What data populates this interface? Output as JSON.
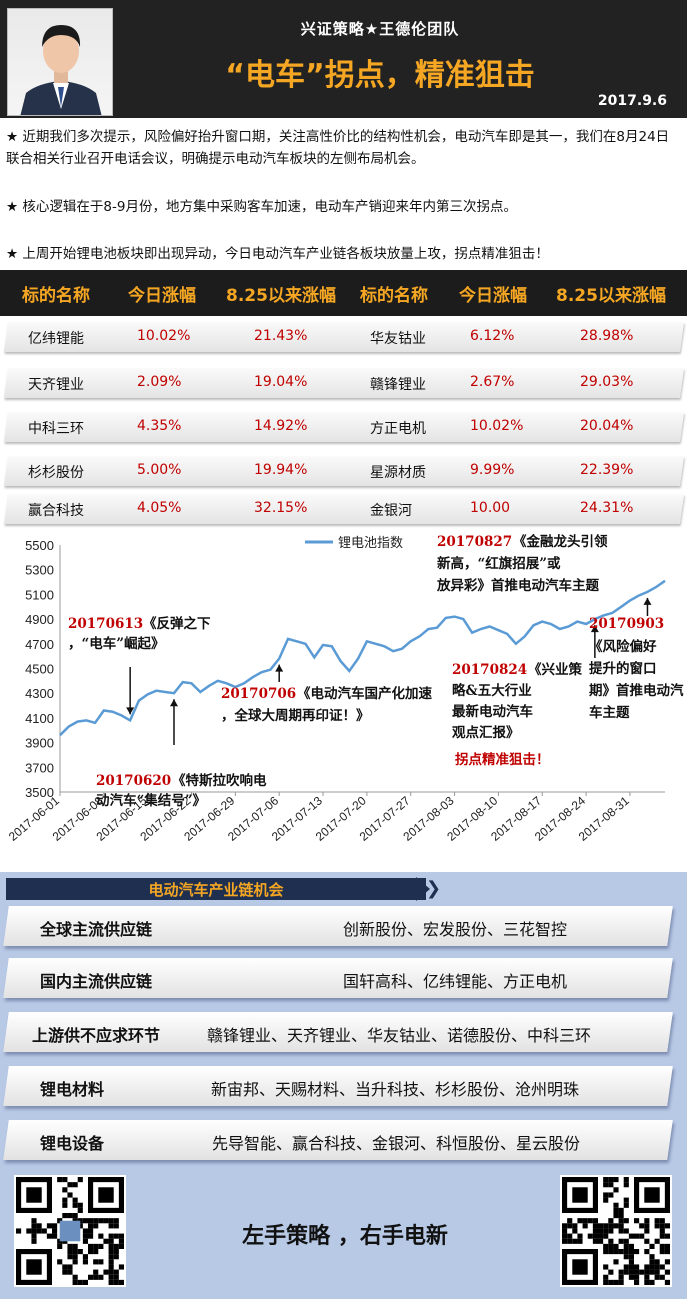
{
  "header": {
    "team": "兴证策略★王德伦团队",
    "title": "“电车”拐点，精准狙击",
    "date": "2017.9.6"
  },
  "intro": [
    "★  近期我们多次提示，风险偏好抬升窗口期，关注高性价比的结构性机会，电动汽车即是其一，我们在8月24日联合相关行业召开电话会议，明确提示电动汽车板块的左侧布局机会。",
    "★  核心逻辑在于8-9月份，地方集中采购客车加速，电动车产销迎来年内第三次拐点。",
    "★  上周开始锂电池板块即出现异动，今日电动汽车产业链各板块放量上攻，拐点精准狙击！"
  ],
  "table": {
    "headers": [
      "标的名称",
      "今日涨幅",
      "8.25以来涨幅",
      "标的名称",
      "今日涨幅",
      "8.25以来涨幅"
    ],
    "rows": [
      [
        "亿纬锂能",
        "10.02%",
        "21.43%",
        "华友钴业",
        "6.12%",
        "28.98%"
      ],
      [
        "天齐锂业",
        "2.09%",
        "19.04%",
        "赣锋锂业",
        "2.67%",
        "29.03%"
      ],
      [
        "中科三环",
        "4.35%",
        "14.92%",
        "方正电机",
        "10.02%",
        "20.04%"
      ],
      [
        "杉杉股份",
        "5.00%",
        "19.94%",
        "星源材质",
        "9.99%",
        "22.39%"
      ],
      [
        "赢合科技",
        "4.05%",
        "32.15%",
        "金银河",
        "10.00",
        "24.31%"
      ]
    ]
  },
  "chart_data": {
    "type": "line",
    "series": [
      {
        "name": "锂电池指数",
        "x": [
          "2017-06-01",
          "2017-06-02",
          "2017-06-05",
          "2017-06-06",
          "2017-06-07",
          "2017-06-08",
          "2017-06-09",
          "2017-06-12",
          "2017-06-13",
          "2017-06-14",
          "2017-06-15",
          "2017-06-16",
          "2017-06-19",
          "2017-06-20",
          "2017-06-21",
          "2017-06-22",
          "2017-06-23",
          "2017-06-26",
          "2017-06-27",
          "2017-06-28",
          "2017-06-29",
          "2017-06-30",
          "2017-07-03",
          "2017-07-04",
          "2017-07-05",
          "2017-07-06",
          "2017-07-07",
          "2017-07-10",
          "2017-07-11",
          "2017-07-12",
          "2017-07-13",
          "2017-07-14",
          "2017-07-17",
          "2017-07-18",
          "2017-07-19",
          "2017-07-20",
          "2017-07-21",
          "2017-07-24",
          "2017-07-25",
          "2017-07-26",
          "2017-07-27",
          "2017-07-28",
          "2017-07-31",
          "2017-08-01",
          "2017-08-02",
          "2017-08-03",
          "2017-08-04",
          "2017-08-07",
          "2017-08-08",
          "2017-08-09",
          "2017-08-10",
          "2017-08-11",
          "2017-08-14",
          "2017-08-15",
          "2017-08-16",
          "2017-08-17",
          "2017-08-18",
          "2017-08-21",
          "2017-08-22",
          "2017-08-23",
          "2017-08-24",
          "2017-08-25",
          "2017-08-28",
          "2017-08-29",
          "2017-08-30",
          "2017-08-31",
          "2017-09-01",
          "2017-09-04",
          "2017-09-05",
          "2017-09-06"
        ],
        "values": [
          3960,
          4030,
          4070,
          4080,
          4060,
          4160,
          4150,
          4120,
          4080,
          4240,
          4290,
          4320,
          4310,
          4300,
          4390,
          4380,
          4310,
          4360,
          4400,
          4380,
          4350,
          4380,
          4430,
          4470,
          4490,
          4580,
          4740,
          4720,
          4700,
          4590,
          4690,
          4680,
          4560,
          4480,
          4580,
          4720,
          4700,
          4680,
          4640,
          4660,
          4720,
          4760,
          4820,
          4830,
          4910,
          4920,
          4900,
          4790,
          4820,
          4840,
          4810,
          4780,
          4700,
          4760,
          4850,
          4880,
          4860,
          4820,
          4840,
          4880,
          4860,
          4900,
          4930,
          4950,
          5000,
          5050,
          5090,
          5120,
          5160,
          5210
        ]
      }
    ],
    "ylim": [
      3500,
      5500
    ],
    "yticks": [
      "5500",
      "5300",
      "5100",
      "4900",
      "4700",
      "4500",
      "4300",
      "4100",
      "3900",
      "3700",
      "3500"
    ],
    "xticks": [
      "2017-06-01",
      "2017-06-08",
      "2017-06-15",
      "2017-06-22",
      "2017-06-29",
      "2017-07-06",
      "2017-07-13",
      "2017-07-20",
      "2017-07-27",
      "2017-08-03",
      "2017-08-10",
      "2017-08-17",
      "2017-08-24",
      "2017-08-31"
    ],
    "legend_position": "top-center",
    "grid": false,
    "annotations": [
      {
        "date": "20170613",
        "text": "《反弹之下，“电车”崛起》"
      },
      {
        "date": "20170620",
        "text": "《特斯拉吹响电动汽车“集结号”》"
      },
      {
        "date": "20170706",
        "text": "《电动汽车国产化加速，全球大周期再印证！》"
      },
      {
        "date": "20170824",
        "text": "《兴业策略&五大行业最新电动汽车观点汇报》",
        "extra": "拐点精准狙击！"
      },
      {
        "date": "20170827",
        "text": "《金融龙头引领新高，“红旗招展”或放异彩》首推电动汽车主题"
      },
      {
        "date": "20170903",
        "text": "《风险偏好提升的窗口期》首推电动汽车主题"
      }
    ],
    "line_color": "#5b9bd5",
    "date_color": "#c00000"
  },
  "supply_chain": {
    "title": "电动汽车产业链机会",
    "items": [
      {
        "label": "全球主流供应链",
        "value": "创新股份、宏发股份、三花智控"
      },
      {
        "label": "国内主流供应链",
        "value": "国轩高科、亿纬锂能、方正电机"
      },
      {
        "label": "上游供不应求环节",
        "value": "赣锋锂业、天齐锂业、华友钴业、诺德股份、中科三环"
      },
      {
        "label": "锂电材料",
        "value": "新宙邦、天赐材料、当升科技、杉杉股份、沧州明珠"
      },
      {
        "label": "锂电设备",
        "value": "先导智能、赢合科技、金银河、科恒股份、星云股份"
      }
    ]
  },
  "footer": {
    "slogan": "左手策略 ，右手电新"
  },
  "colors": {
    "accent": "#f5a623",
    "dark": "#1c1c1c",
    "red": "#c00000",
    "panel": "#b8c9e6"
  }
}
